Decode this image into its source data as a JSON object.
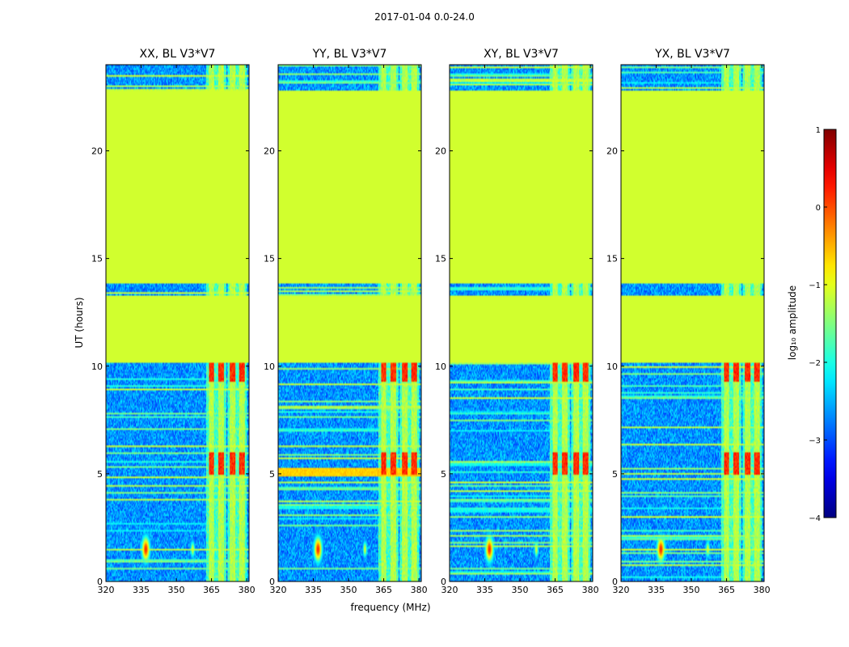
{
  "figure_title": "2017-01-04 0.0-24.0",
  "chart_data": [
    {
      "type": "heatmap",
      "title": "XX, BL V3*V7",
      "xlabel": "",
      "ylabel": "UT (hours)",
      "xlim": [
        320,
        381
      ],
      "ylim": [
        0,
        24
      ],
      "xticks": [
        320,
        335,
        350,
        365,
        380
      ],
      "yticks": [
        0,
        5,
        10,
        15,
        20
      ],
      "xtick_labels": [
        "320",
        "335",
        "350",
        "365",
        "380"
      ],
      "ytick_labels": [
        "0",
        "5",
        "10",
        "15",
        "20"
      ]
    },
    {
      "type": "heatmap",
      "title": "YY, BL V3*V7",
      "xlabel": "frequency (MHz)",
      "ylabel": "",
      "xlim": [
        320,
        381
      ],
      "ylim": [
        0,
        24
      ],
      "xticks": [
        320,
        335,
        350,
        365,
        380
      ],
      "yticks": [
        0,
        5,
        10,
        15,
        20
      ],
      "xtick_labels": [
        "320",
        "335",
        "350",
        "365",
        "380"
      ],
      "ytick_labels": [
        "0",
        "5",
        "10",
        "15",
        "20"
      ]
    },
    {
      "type": "heatmap",
      "title": "XY, BL V3*V7",
      "xlabel": "",
      "ylabel": "",
      "xlim": [
        320,
        381
      ],
      "ylim": [
        0,
        24
      ],
      "xticks": [
        320,
        335,
        350,
        365,
        380
      ],
      "yticks": [
        0,
        5,
        10,
        15,
        20
      ],
      "xtick_labels": [
        "320",
        "335",
        "350",
        "365",
        "380"
      ],
      "ytick_labels": [
        "0",
        "5",
        "10",
        "15",
        "20"
      ]
    },
    {
      "type": "heatmap",
      "title": "YX, BL V3*V7",
      "xlabel": "",
      "ylabel": "",
      "xlim": [
        320,
        381
      ],
      "ylim": [
        0,
        24
      ],
      "xticks": [
        320,
        335,
        350,
        365,
        380
      ],
      "yticks": [
        0,
        5,
        10,
        15,
        20
      ],
      "xtick_labels": [
        "320",
        "335",
        "350",
        "365",
        "380"
      ],
      "ytick_labels": [
        "0",
        "5",
        "10",
        "15",
        "20"
      ]
    }
  ],
  "colorbar": {
    "label": "log₁₀ amplitude",
    "range": [
      -4,
      1
    ],
    "ticks": [
      1,
      0,
      -1,
      -2,
      -3,
      -4
    ],
    "tick_labels": [
      "1",
      "0",
      "−1",
      "−2",
      "−3",
      "−4"
    ],
    "colormap": "jet"
  },
  "structure": {
    "flagged_value": -1.1,
    "flagged_ut_ranges": [
      [
        10.2,
        13.3
      ],
      [
        13.8,
        22.8
      ]
    ],
    "rfi_channels_mhz": [
      365,
      369,
      374,
      378
    ],
    "colors": {
      "flagged": "#99ff55",
      "background": "#1133ee",
      "outline": "#000000"
    }
  }
}
